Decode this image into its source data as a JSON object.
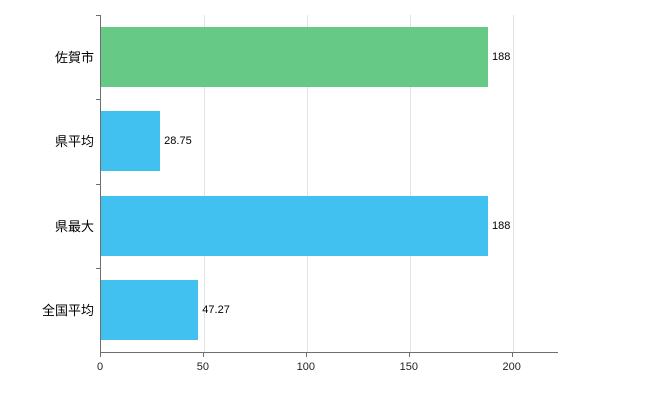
{
  "chart_data": {
    "type": "bar",
    "orientation": "horizontal",
    "title": "",
    "categories": [
      "佐賀市",
      "県平均",
      "県最大",
      "全国平均"
    ],
    "values": [
      188,
      28.75,
      188,
      47.27
    ],
    "value_labels": [
      "188",
      "28.75",
      "188",
      "47.27"
    ],
    "bar_colors": [
      "#67c986",
      "#41c1f0",
      "#41c1f0",
      "#41c1f0"
    ],
    "xlim": [
      0,
      222
    ],
    "x_ticks": [
      0,
      50,
      100,
      150,
      200
    ],
    "x_tick_labels": [
      "0",
      "50",
      "100",
      "150",
      "200"
    ],
    "grid": true,
    "legend": "none",
    "axis_color": "#6e6e6e",
    "grid_color": "#e3e3e3",
    "background_color": "#ffffff"
  }
}
